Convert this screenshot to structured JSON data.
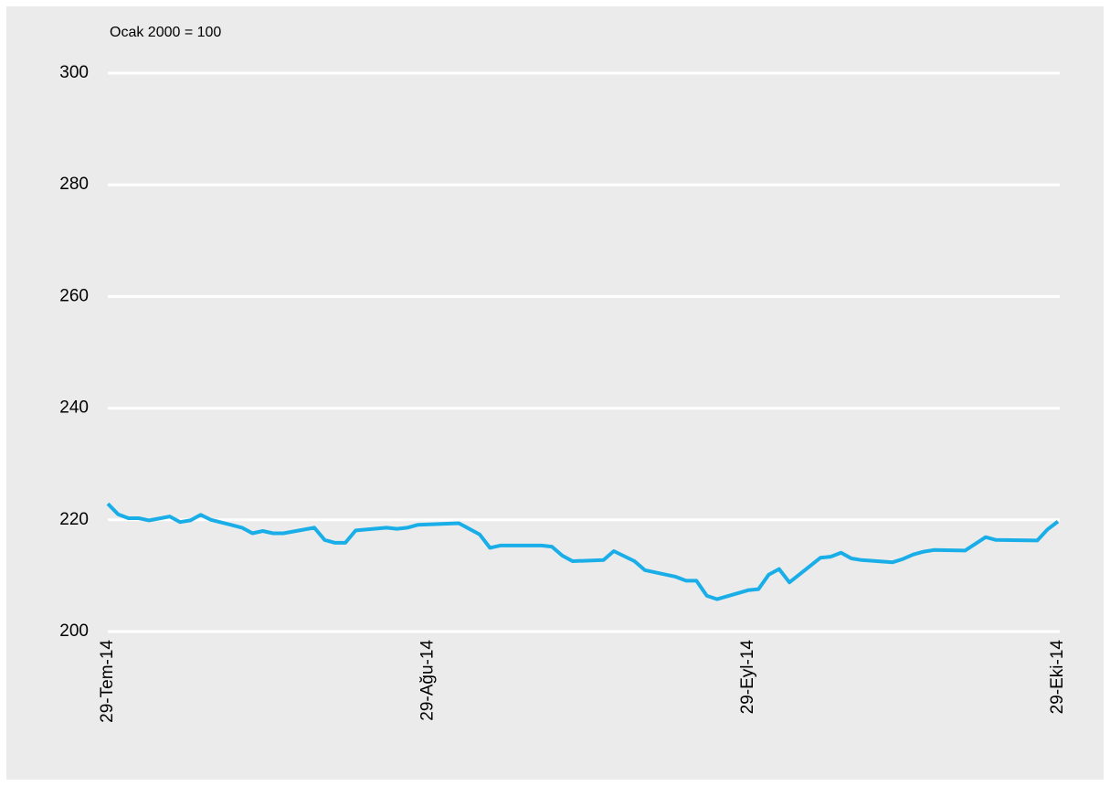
{
  "chart_data": {
    "type": "line",
    "subtitle": "Ocak 2000 = 100",
    "x": [
      "2014-07-29",
      "2014-07-30",
      "2014-07-31",
      "2014-08-01",
      "2014-08-02",
      "2014-08-04",
      "2014-08-05",
      "2014-08-06",
      "2014-08-07",
      "2014-08-08",
      "2014-08-11",
      "2014-08-12",
      "2014-08-13",
      "2014-08-14",
      "2014-08-15",
      "2014-08-18",
      "2014-08-19",
      "2014-08-20",
      "2014-08-21",
      "2014-08-22",
      "2014-08-25",
      "2014-08-26",
      "2014-08-27",
      "2014-08-28",
      "2014-09-01",
      "2014-09-03",
      "2014-09-04",
      "2014-09-05",
      "2014-09-09",
      "2014-09-10",
      "2014-09-11",
      "2014-09-12",
      "2014-09-15",
      "2014-09-16",
      "2014-09-18",
      "2014-09-19",
      "2014-09-22",
      "2014-09-23",
      "2014-09-24",
      "2014-09-25",
      "2014-09-26",
      "2014-09-29",
      "2014-09-30",
      "2014-10-01",
      "2014-10-02",
      "2014-10-03",
      "2014-10-06",
      "2014-10-07",
      "2014-10-08",
      "2014-10-09",
      "2014-10-10",
      "2014-10-13",
      "2014-10-14",
      "2014-10-15",
      "2014-10-16",
      "2014-10-17",
      "2014-10-20",
      "2014-10-22",
      "2014-10-23",
      "2014-10-27",
      "2014-10-28",
      "2014-10-29"
    ],
    "series": [
      {
        "color": "#1aaee8",
        "values": [
          222.9,
          221.0,
          220.3,
          220.3,
          219.9,
          220.6,
          219.6,
          219.9,
          220.9,
          220.0,
          218.6,
          217.6,
          218.0,
          217.6,
          217.6,
          218.6,
          216.4,
          215.9,
          215.9,
          218.1,
          218.6,
          218.4,
          218.6,
          219.1,
          219.4,
          217.4,
          215.0,
          215.4,
          215.4,
          215.2,
          213.6,
          212.6,
          212.8,
          214.4,
          212.6,
          211.0,
          209.8,
          209.1,
          209.1,
          206.4,
          205.8,
          207.4,
          207.6,
          210.2,
          211.2,
          208.8,
          213.2,
          213.4,
          214.1,
          213.1,
          212.8,
          212.4,
          213.0,
          213.8,
          214.3,
          214.6,
          214.5,
          216.9,
          216.4,
          216.3,
          218.3,
          219.7
        ]
      }
    ],
    "xlim": [
      "2014-07-29",
      "2014-10-29"
    ],
    "xticks": [
      {
        "value": "2014-07-29",
        "label": "29-Tem-14"
      },
      {
        "value": "2014-08-29",
        "label": "29-Ağu-14"
      },
      {
        "value": "2014-09-29",
        "label": "29-Eyl-14"
      },
      {
        "value": "2014-10-29",
        "label": "29-Eki-14"
      }
    ],
    "ylim": [
      200,
      300
    ],
    "yticks": [
      200,
      220,
      240,
      260,
      280,
      300
    ],
    "grid": true
  }
}
